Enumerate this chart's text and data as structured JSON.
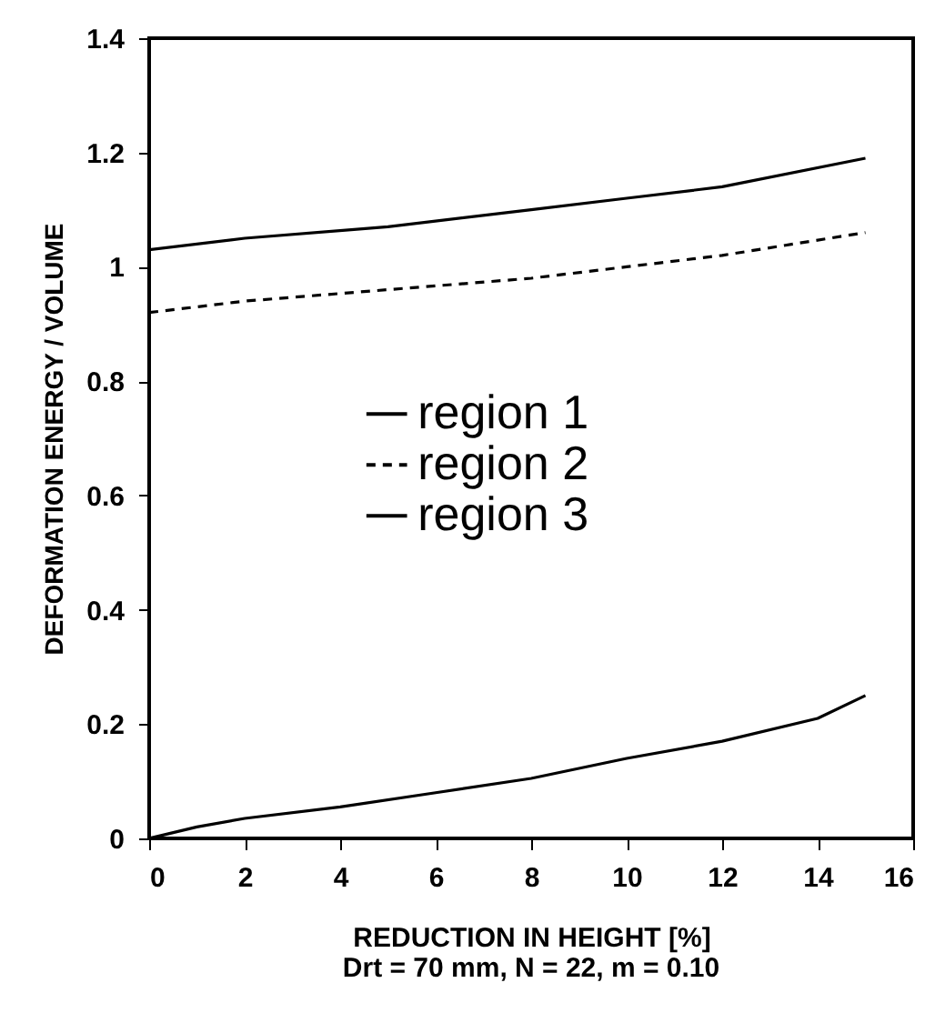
{
  "chart_data": {
    "type": "line",
    "xlabel": "REDUCTION IN HEIGHT [%]",
    "ylabel": "DEFORMATION ENERGY / VOLUME",
    "annotations": [
      "Drt = 70 mm, N = 22, m = 0.10"
    ],
    "xlim": [
      0,
      16
    ],
    "xticks": [
      0,
      2,
      4,
      6,
      8,
      10,
      12,
      14,
      16
    ],
    "ylim": [
      0,
      1.4
    ],
    "yticks": [
      0,
      0.2,
      0.4,
      0.6,
      0.8,
      1,
      1.2,
      1.4
    ],
    "grid": false,
    "legend": "center",
    "marker": "none",
    "series": [
      {
        "name": "region 1",
        "color": "#000000",
        "line_style": "solid",
        "x": [
          0,
          2,
          5,
          8,
          10,
          12,
          15
        ],
        "values": [
          1.03,
          1.05,
          1.07,
          1.1,
          1.12,
          1.14,
          1.19
        ]
      },
      {
        "name": "region 2",
        "color": "#000000",
        "line_style": "dashed",
        "x": [
          0,
          2,
          5,
          8,
          10,
          12,
          15
        ],
        "values": [
          0.92,
          0.94,
          0.96,
          0.98,
          1.0,
          1.02,
          1.06
        ]
      },
      {
        "name": "region 3",
        "color": "#000000",
        "line_style": "solid",
        "x": [
          0,
          1,
          2,
          4,
          6,
          8,
          10,
          12,
          14,
          15
        ],
        "values": [
          0,
          0.02,
          0.035,
          0.055,
          0.08,
          0.105,
          0.14,
          0.17,
          0.21,
          0.25
        ]
      }
    ]
  }
}
